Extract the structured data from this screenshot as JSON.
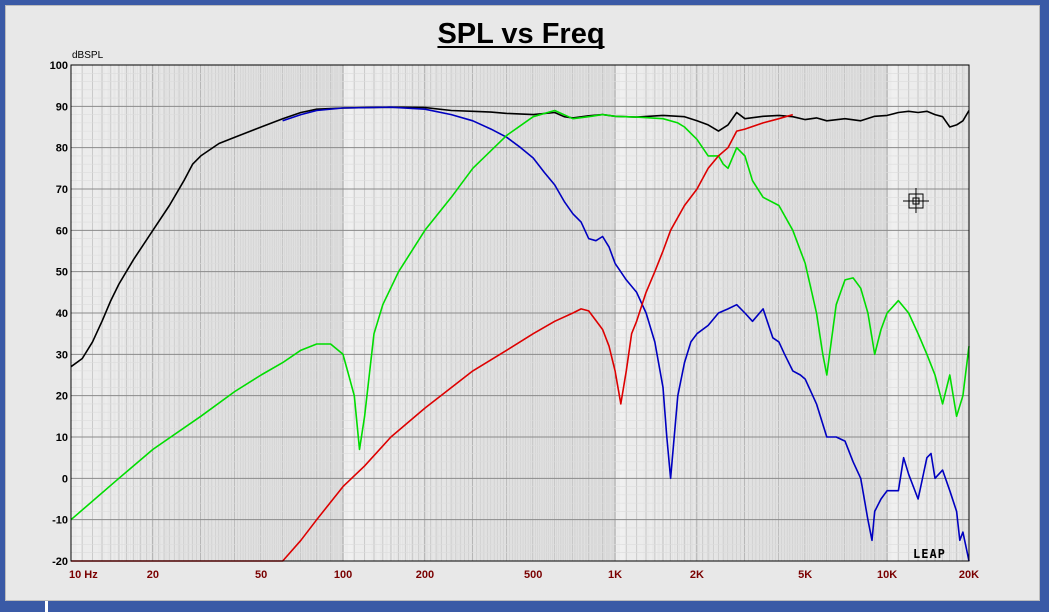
{
  "chart_data": {
    "type": "line",
    "title": "SPL vs Freq",
    "ylabel": "dBSPL",
    "xlabel": "",
    "x_scale": "log",
    "xlim": [
      10,
      20000
    ],
    "ylim": [
      -20,
      100
    ],
    "grid": true,
    "x_tick_labels": [
      {
        "value": 10,
        "label": "10 Hz"
      },
      {
        "value": 20,
        "label": "20"
      },
      {
        "value": 50,
        "label": "50"
      },
      {
        "value": 100,
        "label": "100"
      },
      {
        "value": 200,
        "label": "200"
      },
      {
        "value": 500,
        "label": "500"
      },
      {
        "value": 1000,
        "label": "1K"
      },
      {
        "value": 2000,
        "label": "2K"
      },
      {
        "value": 5000,
        "label": "5K"
      },
      {
        "value": 10000,
        "label": "10K"
      },
      {
        "value": 20000,
        "label": "20K"
      }
    ],
    "y_ticks": [
      100,
      90,
      80,
      70,
      60,
      50,
      40,
      30,
      20,
      10,
      0,
      -10,
      -20
    ],
    "series": [
      {
        "color": "#000000",
        "points": [
          [
            10,
            27
          ],
          [
            11,
            29
          ],
          [
            12,
            33
          ],
          [
            13,
            38
          ],
          [
            14,
            43
          ],
          [
            15,
            47
          ],
          [
            17,
            53
          ],
          [
            20,
            60
          ],
          [
            23,
            66
          ],
          [
            26,
            72
          ],
          [
            28,
            76
          ],
          [
            30,
            78
          ],
          [
            35,
            81
          ],
          [
            40,
            82.5
          ],
          [
            50,
            85
          ],
          [
            60,
            87
          ],
          [
            70,
            88.5
          ],
          [
            80,
            89.3
          ],
          [
            100,
            89.6
          ],
          [
            150,
            89.8
          ],
          [
            200,
            89.7
          ],
          [
            250,
            89
          ],
          [
            300,
            88.8
          ],
          [
            350,
            88.6
          ],
          [
            400,
            88.3
          ],
          [
            500,
            88
          ],
          [
            600,
            88.5
          ],
          [
            650,
            87.5
          ],
          [
            700,
            87.2
          ],
          [
            800,
            87.7
          ],
          [
            900,
            88
          ],
          [
            1000,
            87.6
          ],
          [
            1200,
            87.4
          ],
          [
            1500,
            87.8
          ],
          [
            1800,
            87.5
          ],
          [
            2000,
            86.5
          ],
          [
            2200,
            85.5
          ],
          [
            2400,
            84
          ],
          [
            2600,
            85.5
          ],
          [
            2800,
            88.5
          ],
          [
            3000,
            87
          ],
          [
            3500,
            87.6
          ],
          [
            4000,
            87.8
          ],
          [
            4500,
            87.5
          ],
          [
            5000,
            86.8
          ],
          [
            5500,
            87.2
          ],
          [
            6000,
            86.5
          ],
          [
            7000,
            87
          ],
          [
            8000,
            86.5
          ],
          [
            9000,
            87.6
          ],
          [
            10000,
            87.8
          ],
          [
            11000,
            88.5
          ],
          [
            12000,
            88.8
          ],
          [
            13000,
            88.5
          ],
          [
            14000,
            88.8
          ],
          [
            15000,
            88
          ],
          [
            16000,
            87.5
          ],
          [
            17000,
            85
          ],
          [
            18000,
            85.5
          ],
          [
            19000,
            86.5
          ],
          [
            20000,
            89
          ]
        ]
      },
      {
        "color": "#0000c0",
        "points": [
          [
            60,
            86.5
          ],
          [
            70,
            88
          ],
          [
            80,
            89
          ],
          [
            100,
            89.6
          ],
          [
            150,
            89.8
          ],
          [
            200,
            89.3
          ],
          [
            250,
            88
          ],
          [
            300,
            86.5
          ],
          [
            350,
            84.5
          ],
          [
            400,
            82.5
          ],
          [
            450,
            80
          ],
          [
            500,
            77.5
          ],
          [
            550,
            74
          ],
          [
            600,
            71
          ],
          [
            650,
            67
          ],
          [
            700,
            64
          ],
          [
            750,
            62
          ],
          [
            800,
            58
          ],
          [
            850,
            57.5
          ],
          [
            900,
            58.5
          ],
          [
            950,
            56
          ],
          [
            1000,
            52
          ],
          [
            1100,
            48
          ],
          [
            1200,
            45
          ],
          [
            1300,
            40
          ],
          [
            1400,
            33
          ],
          [
            1500,
            22
          ],
          [
            1550,
            10
          ],
          [
            1600,
            0
          ],
          [
            1650,
            10
          ],
          [
            1700,
            20
          ],
          [
            1800,
            28
          ],
          [
            1900,
            33
          ],
          [
            2000,
            35
          ],
          [
            2200,
            37
          ],
          [
            2400,
            40
          ],
          [
            2600,
            41
          ],
          [
            2800,
            42
          ],
          [
            3000,
            40
          ],
          [
            3200,
            38
          ],
          [
            3500,
            41
          ],
          [
            3800,
            34
          ],
          [
            4000,
            33
          ],
          [
            4200,
            30
          ],
          [
            4500,
            26
          ],
          [
            4800,
            25
          ],
          [
            5000,
            24
          ],
          [
            5500,
            18
          ],
          [
            6000,
            10
          ],
          [
            6500,
            10
          ],
          [
            7000,
            9
          ],
          [
            7500,
            4
          ],
          [
            8000,
            0
          ],
          [
            8500,
            -10
          ],
          [
            8800,
            -15
          ],
          [
            9000,
            -8
          ],
          [
            9500,
            -5
          ],
          [
            10000,
            -3
          ],
          [
            11000,
            -3
          ],
          [
            11500,
            5
          ],
          [
            12000,
            1
          ],
          [
            13000,
            -5
          ],
          [
            14000,
            5
          ],
          [
            14500,
            6
          ],
          [
            15000,
            0
          ],
          [
            16000,
            2
          ],
          [
            17000,
            -3
          ],
          [
            18000,
            -8
          ],
          [
            18500,
            -15
          ],
          [
            19000,
            -13
          ],
          [
            20000,
            -20
          ]
        ]
      },
      {
        "color": "#00dd00",
        "points": [
          [
            10,
            -10
          ],
          [
            15,
            0
          ],
          [
            20,
            7
          ],
          [
            30,
            15
          ],
          [
            40,
            21
          ],
          [
            50,
            25
          ],
          [
            60,
            28
          ],
          [
            70,
            31
          ],
          [
            80,
            32.5
          ],
          [
            90,
            32.5
          ],
          [
            100,
            30
          ],
          [
            110,
            20
          ],
          [
            115,
            7
          ],
          [
            120,
            15
          ],
          [
            130,
            35
          ],
          [
            140,
            42
          ],
          [
            160,
            50
          ],
          [
            200,
            60
          ],
          [
            250,
            68
          ],
          [
            300,
            75
          ],
          [
            400,
            83
          ],
          [
            500,
            87.5
          ],
          [
            600,
            89
          ],
          [
            700,
            87
          ],
          [
            800,
            87.5
          ],
          [
            900,
            88
          ],
          [
            1000,
            87.6
          ],
          [
            1200,
            87.4
          ],
          [
            1500,
            87
          ],
          [
            1700,
            86
          ],
          [
            1800,
            85
          ],
          [
            2000,
            82
          ],
          [
            2200,
            78
          ],
          [
            2400,
            78
          ],
          [
            2500,
            76
          ],
          [
            2600,
            75
          ],
          [
            2800,
            80
          ],
          [
            3000,
            78
          ],
          [
            3200,
            72
          ],
          [
            3500,
            68
          ],
          [
            4000,
            66
          ],
          [
            4500,
            60
          ],
          [
            5000,
            52
          ],
          [
            5500,
            40
          ],
          [
            5800,
            30
          ],
          [
            6000,
            25
          ],
          [
            6500,
            42
          ],
          [
            7000,
            48
          ],
          [
            7500,
            48.5
          ],
          [
            8000,
            46
          ],
          [
            8500,
            40
          ],
          [
            9000,
            30
          ],
          [
            9500,
            36
          ],
          [
            10000,
            40
          ],
          [
            11000,
            43
          ],
          [
            12000,
            40
          ],
          [
            13000,
            35
          ],
          [
            14000,
            30
          ],
          [
            15000,
            25
          ],
          [
            16000,
            18
          ],
          [
            17000,
            25
          ],
          [
            18000,
            15
          ],
          [
            19000,
            20
          ],
          [
            20000,
            32
          ]
        ]
      },
      {
        "color": "#dd0000",
        "points": [
          [
            10,
            -20
          ],
          [
            60,
            -20
          ],
          [
            70,
            -15
          ],
          [
            80,
            -10
          ],
          [
            100,
            -2
          ],
          [
            120,
            3
          ],
          [
            150,
            10
          ],
          [
            200,
            17
          ],
          [
            300,
            26
          ],
          [
            400,
            31
          ],
          [
            500,
            35
          ],
          [
            600,
            38
          ],
          [
            700,
            40
          ],
          [
            750,
            41
          ],
          [
            800,
            40.5
          ],
          [
            900,
            36
          ],
          [
            950,
            32
          ],
          [
            1000,
            26
          ],
          [
            1050,
            18
          ],
          [
            1100,
            26
          ],
          [
            1150,
            35
          ],
          [
            1200,
            38
          ],
          [
            1300,
            45
          ],
          [
            1400,
            50
          ],
          [
            1500,
            55
          ],
          [
            1600,
            60
          ],
          [
            1800,
            66
          ],
          [
            2000,
            70
          ],
          [
            2200,
            75
          ],
          [
            2400,
            78
          ],
          [
            2600,
            80
          ],
          [
            2800,
            84
          ],
          [
            3000,
            84.5
          ],
          [
            3500,
            86
          ],
          [
            4000,
            87
          ],
          [
            4500,
            88
          ]
        ]
      }
    ],
    "annotations": [
      "LEAP"
    ]
  }
}
